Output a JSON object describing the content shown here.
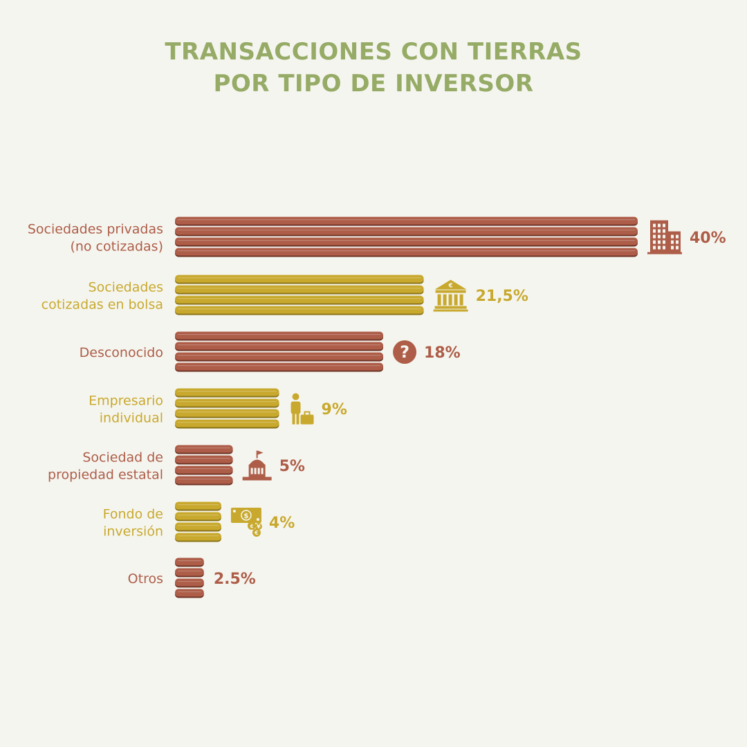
{
  "title": {
    "line1": "TRANSACCIONES CON TIERRAS",
    "line2": "POR TIPO DE INVERSOR"
  },
  "colors": {
    "title": "#96ab66",
    "terracotta": "#ad5d48",
    "mustard": "#c8a92e",
    "background": "#f5f5ef"
  },
  "chart_data": {
    "type": "bar",
    "orientation": "horizontal",
    "title": "TRANSACCIONES CON TIERRAS POR TIPO DE INVERSOR",
    "unit": "%",
    "categories": [
      [
        "Sociedades privadas",
        "(no cotizadas)"
      ],
      [
        "Sociedades",
        "cotizadas en bolsa"
      ],
      [
        "Desconocido"
      ],
      [
        "Empresario",
        "individual"
      ],
      [
        "Sociedad de",
        "propiedad estatal"
      ],
      [
        "Fondo de",
        "inversión"
      ],
      [
        "Otros"
      ]
    ],
    "values": [
      40,
      21.5,
      18,
      9,
      5,
      4,
      2.5
    ],
    "value_labels": [
      "40%",
      "21,5%",
      "18%",
      "9%",
      "5%",
      "4%",
      "2.5%"
    ],
    "colors": [
      "#ad5d48",
      "#c8a92e",
      "#ad5d48",
      "#c8a92e",
      "#ad5d48",
      "#c8a92e",
      "#ad5d48"
    ],
    "icons": [
      "office-buildings-icon",
      "bank-euro-icon",
      "question-icon",
      "businessman-icon",
      "government-building-icon",
      "money-bill-icon",
      ""
    ]
  }
}
